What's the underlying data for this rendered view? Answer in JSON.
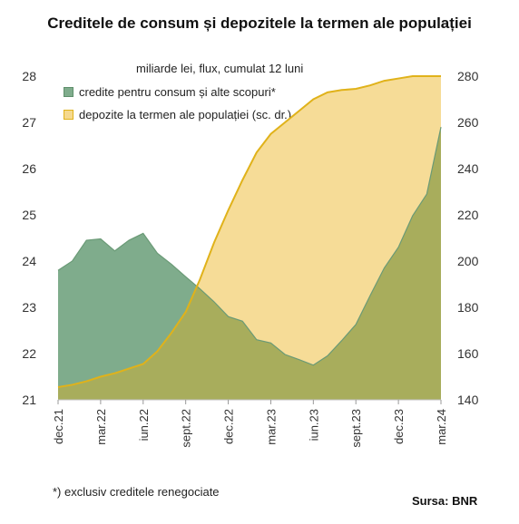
{
  "chart_data": {
    "type": "area",
    "title": "Creditele de consum și depozitele la termen ale populației",
    "subtitle": "miliarde lei, flux, cumulat 12 luni",
    "x": [
      "dec.21",
      "ian.22",
      "feb.22",
      "mar.22",
      "apr.22",
      "mai.22",
      "iun.22",
      "iul.22",
      "aug.22",
      "sept.22",
      "oct.22",
      "nov.22",
      "dec.22",
      "ian.23",
      "feb.23",
      "mar.23",
      "apr.23",
      "mai.23",
      "iun.23",
      "iul.23",
      "aug.23",
      "sept.23",
      "oct.23",
      "nov.23",
      "dec.23",
      "ian.24",
      "feb.24",
      "mar.24"
    ],
    "x_tick_labels": [
      "dec.21",
      "mar.22",
      "iun.22",
      "sept.22",
      "dec.22",
      "mar.23",
      "iun.23",
      "sept.23",
      "dec.23",
      "mar.24"
    ],
    "y_left": {
      "lim": [
        21,
        28
      ],
      "ticks": [
        "21",
        "22",
        "23",
        "24",
        "25",
        "26",
        "27",
        "28"
      ]
    },
    "y_right": {
      "lim": [
        140,
        280
      ],
      "ticks": [
        "140",
        "160",
        "180",
        "200",
        "220",
        "240",
        "260",
        "280"
      ]
    },
    "series": [
      {
        "name": "credite pentru  consum și alte scopuri*",
        "axis": "left",
        "color": "#7fac8c",
        "overlap_color": "#a8ad5c",
        "values": [
          23.8,
          24.0,
          24.45,
          24.48,
          24.22,
          24.45,
          24.6,
          24.17,
          23.93,
          23.66,
          23.4,
          23.12,
          22.8,
          22.7,
          22.3,
          22.23,
          21.98,
          21.87,
          21.75,
          21.95,
          22.28,
          22.63,
          23.25,
          23.85,
          24.3,
          24.98,
          25.45,
          26.9
        ]
      },
      {
        "name": "depozite  la termen ale populației (sc. dr.)",
        "axis": "right",
        "color": "#f5d98e",
        "line_color": "#e0b21a",
        "values": [
          145.5,
          146.5,
          148,
          150,
          151.5,
          153.5,
          155.5,
          161,
          169,
          178,
          192,
          208,
          222,
          235,
          247,
          255,
          260,
          265,
          270,
          273,
          274,
          274.5,
          276,
          278,
          279,
          280,
          280,
          280
        ]
      }
    ],
    "grid": false,
    "legend_position": "top-left"
  },
  "footnote": "*) exclusiv creditele renegociate",
  "source": "Sursa: BNR",
  "colors": {
    "credit": "#7fac8c",
    "deposit_fill": "#f5d98e",
    "deposit_line": "#e0b21a",
    "overlap": "#a8ad5c"
  }
}
